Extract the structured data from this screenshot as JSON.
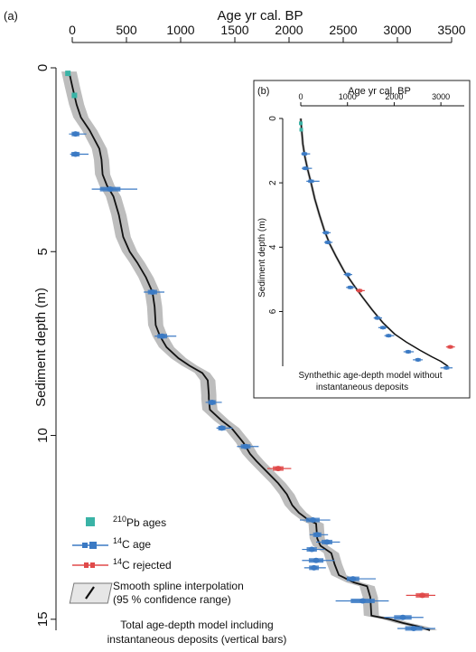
{
  "chart_data": [
    {
      "panel": "(a)",
      "type": "line",
      "xlabel": "Age yr cal. BP",
      "ylabel": "Sediment depth (m)",
      "xlim": [
        0,
        3500
      ],
      "ylim": [
        0,
        15.3
      ],
      "x_ticks": [
        0,
        500,
        1000,
        1500,
        2000,
        2500,
        3000,
        3500
      ],
      "y_ticks": [
        0,
        5,
        10,
        15
      ],
      "axis_position": "x axis at top, depth increasing downward",
      "model": {
        "name": "Smooth spline interpolation",
        "points": [
          [
            -30,
            0.1
          ],
          [
            0,
            0.5
          ],
          [
            40,
            1.0
          ],
          [
            80,
            1.35
          ],
          [
            160,
            1.7
          ],
          [
            250,
            2.2
          ],
          [
            270,
            2.5
          ],
          [
            280,
            2.9
          ],
          [
            320,
            3.2
          ],
          [
            380,
            3.5
          ],
          [
            430,
            4.0
          ],
          [
            470,
            4.6
          ],
          [
            530,
            5.0
          ],
          [
            600,
            5.3
          ],
          [
            680,
            5.7
          ],
          [
            740,
            6.1
          ],
          [
            760,
            6.5
          ],
          [
            770,
            7.0
          ],
          [
            810,
            7.3
          ],
          [
            870,
            7.6
          ],
          [
            980,
            7.9
          ],
          [
            1080,
            8.1
          ],
          [
            1200,
            8.3
          ],
          [
            1250,
            8.5
          ],
          [
            1260,
            8.9
          ],
          [
            1260,
            9.0
          ],
          [
            1270,
            9.3
          ],
          [
            1380,
            9.6
          ],
          [
            1470,
            9.8
          ],
          [
            1580,
            10.2
          ],
          [
            1640,
            10.5
          ],
          [
            1700,
            10.7
          ],
          [
            1800,
            11.0
          ],
          [
            1900,
            11.3
          ],
          [
            1980,
            11.6
          ],
          [
            2030,
            11.9
          ],
          [
            2090,
            12.1
          ],
          [
            2180,
            12.3
          ],
          [
            2250,
            12.4
          ],
          [
            2260,
            12.8
          ],
          [
            2290,
            13.0
          ],
          [
            2390,
            13.2
          ],
          [
            2420,
            13.5
          ],
          [
            2460,
            13.8
          ],
          [
            2600,
            14.0
          ],
          [
            2720,
            14.1
          ],
          [
            2750,
            14.4
          ],
          [
            2760,
            14.9
          ],
          [
            2930,
            15.0
          ],
          [
            3050,
            15.1
          ],
          [
            3200,
            15.2
          ],
          [
            3300,
            15.3
          ]
        ],
        "ci_halfwidth_yr": 70
      },
      "pb210_ages": [
        {
          "age": -40,
          "depth": 0.15
        },
        {
          "age": 20,
          "depth": 0.75
        }
      ],
      "c14_ages": [
        {
          "age": 30,
          "depth": 1.8,
          "range": [
            -30,
            130
          ]
        },
        {
          "age": 30,
          "depth": 2.35,
          "range": [
            -20,
            150
          ]
        },
        {
          "age": 350,
          "depth": 3.3,
          "range": [
            180,
            600
          ]
        },
        {
          "age": 740,
          "depth": 6.1,
          "range": [
            660,
            850
          ]
        },
        {
          "age": 830,
          "depth": 7.3,
          "range": [
            760,
            960
          ]
        },
        {
          "age": 1290,
          "depth": 9.1,
          "range": [
            1230,
            1380
          ]
        },
        {
          "age": 1380,
          "depth": 9.8,
          "range": [
            1330,
            1480
          ]
        },
        {
          "age": 1600,
          "depth": 10.3,
          "range": [
            1520,
            1720
          ]
        },
        {
          "age": 2220,
          "depth": 12.3,
          "range": [
            2100,
            2380
          ]
        },
        {
          "age": 2260,
          "depth": 12.7,
          "range": [
            2190,
            2360
          ]
        },
        {
          "age": 2350,
          "depth": 12.9,
          "range": [
            2250,
            2470
          ]
        },
        {
          "age": 2210,
          "depth": 13.1,
          "range": [
            2120,
            2330
          ]
        },
        {
          "age": 2250,
          "depth": 13.4,
          "range": [
            2120,
            2420
          ]
        },
        {
          "age": 2230,
          "depth": 13.6,
          "range": [
            2140,
            2340
          ]
        },
        {
          "age": 2590,
          "depth": 13.9,
          "range": [
            2540,
            2800
          ]
        },
        {
          "age": 2680,
          "depth": 14.5,
          "range": [
            2430,
            2920
          ]
        },
        {
          "age": 3050,
          "depth": 14.95,
          "range": [
            2880,
            3240
          ]
        },
        {
          "age": 3150,
          "depth": 15.25,
          "range": [
            3000,
            3350
          ]
        }
      ],
      "c14_rejected": [
        {
          "age": 1900,
          "depth": 10.9,
          "range": [
            1800,
            2020
          ]
        },
        {
          "age": 3230,
          "depth": 14.35,
          "range": [
            3080,
            3350
          ]
        }
      ],
      "legend": {
        "pb": "Pb ages",
        "pb_sup": "210",
        "c14": "C age",
        "c14_sup": "14",
        "rej": "C rejected",
        "rej_sup": "14",
        "spline_1": "Smooth spline interpolation",
        "spline_2": "(95 % confidence range)"
      },
      "annotation_1": "Total age-depth model including",
      "annotation_2": "instantaneous deposits (vertical bars)",
      "colors": {
        "c14": "#3b7ac4",
        "rejected": "#e04a4a",
        "pb210": "#3ab3a6",
        "ci": "#bdbdbd",
        "line": "#111111"
      }
    },
    {
      "panel": "(b)",
      "type": "line",
      "xlabel": "Age yr cal. BP",
      "ylabel": "Sediment depth (m)",
      "xlim": [
        0,
        3500
      ],
      "ylim": [
        0,
        7.7
      ],
      "x_ticks": [
        0,
        1000,
        2000,
        3000
      ],
      "y_ticks": [
        0,
        2,
        4,
        6
      ],
      "model": {
        "points": [
          [
            0,
            0
          ],
          [
            15,
            0.3
          ],
          [
            45,
            0.8
          ],
          [
            90,
            1.2
          ],
          [
            150,
            1.6
          ],
          [
            220,
            2.0
          ],
          [
            300,
            2.5
          ],
          [
            400,
            3.0
          ],
          [
            510,
            3.5
          ],
          [
            620,
            3.9
          ],
          [
            760,
            4.3
          ],
          [
            930,
            4.75
          ],
          [
            1120,
            5.15
          ],
          [
            1320,
            5.55
          ],
          [
            1530,
            5.95
          ],
          [
            1760,
            6.35
          ],
          [
            2010,
            6.7
          ],
          [
            2260,
            6.95
          ],
          [
            2550,
            7.2
          ],
          [
            2800,
            7.4
          ],
          [
            3000,
            7.55
          ],
          [
            3150,
            7.7
          ]
        ],
        "ci_halfwidth_yr": 30
      },
      "pb210_ages": [
        {
          "age": 0,
          "depth": 0.15
        },
        {
          "age": 10,
          "depth": 0.35
        }
      ],
      "c14_ages": [
        {
          "age": 80,
          "depth": 1.1,
          "range": [
            10,
            200
          ]
        },
        {
          "age": 100,
          "depth": 1.55,
          "range": [
            20,
            240
          ]
        },
        {
          "age": 220,
          "depth": 1.95,
          "range": [
            120,
            400
          ]
        },
        {
          "age": 540,
          "depth": 3.55,
          "range": [
            460,
            640
          ]
        },
        {
          "age": 580,
          "depth": 3.85,
          "range": [
            500,
            680
          ]
        },
        {
          "age": 1010,
          "depth": 4.85,
          "range": [
            920,
            1100
          ]
        },
        {
          "age": 1060,
          "depth": 5.25,
          "range": [
            970,
            1170
          ]
        },
        {
          "age": 1640,
          "depth": 6.2,
          "range": [
            1560,
            1740
          ]
        },
        {
          "age": 1760,
          "depth": 6.5,
          "range": [
            1660,
            1850
          ]
        },
        {
          "age": 1880,
          "depth": 6.75,
          "range": [
            1790,
            2000
          ]
        },
        {
          "age": 2300,
          "depth": 7.25,
          "range": [
            2200,
            2420
          ]
        },
        {
          "age": 2510,
          "depth": 7.5,
          "range": [
            2400,
            2610
          ]
        },
        {
          "age": 3120,
          "depth": 7.75,
          "range": [
            2990,
            3250
          ]
        }
      ],
      "c14_rejected": [
        {
          "age": 1260,
          "depth": 5.35,
          "range": [
            1180,
            1370
          ]
        },
        {
          "age": 3200,
          "depth": 7.1,
          "range": [
            3110,
            3300
          ]
        }
      ],
      "caption_1": "Synthethic age-depth model without",
      "caption_2": "instantaneous deposits"
    }
  ]
}
